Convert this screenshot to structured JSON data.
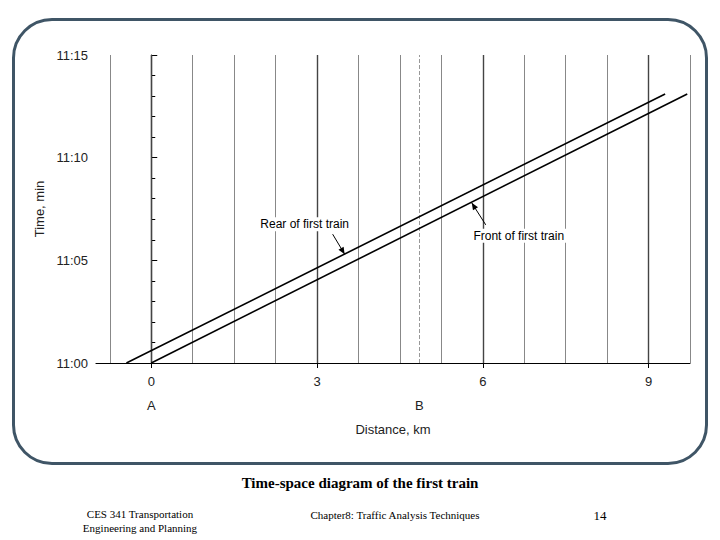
{
  "chart_data": {
    "type": "line",
    "title": "Time-space diagram of the first train",
    "x_label": "Distance, km",
    "y_label": "Time, min",
    "xlim": [
      -1,
      9.75
    ],
    "xticks": [
      0,
      3,
      6,
      9
    ],
    "ylim": [
      660,
      675
    ],
    "yticks": [
      {
        "value": 660,
        "label": "11:00"
      },
      {
        "value": 665,
        "label": "11:05"
      },
      {
        "value": 670,
        "label": "11:10"
      },
      {
        "value": 675,
        "label": "11:15"
      }
    ],
    "grid": true,
    "series": [
      {
        "name": "Rear of first train",
        "color": "#000000",
        "x": [
          -0.45,
          9.3
        ],
        "values": [
          660,
          673.1
        ],
        "annotation": {
          "x": 3.5,
          "y": 665.3
        }
      },
      {
        "name": "Front of first train",
        "color": "#000000",
        "x": [
          0,
          9.7
        ],
        "values": [
          660,
          673.1
        ],
        "annotation": {
          "x": 5.8,
          "y": 667.8
        }
      }
    ],
    "points": [
      {
        "label": "A",
        "x": 0
      },
      {
        "label": "B",
        "x": 4.85,
        "line_style": "dashed"
      }
    ]
  },
  "footer": {
    "left": [
      "CES 341 Transportation",
      "Engineering and Planning"
    ],
    "center": "Chapter8: Traffic Analysis Techniques",
    "page": 14
  }
}
